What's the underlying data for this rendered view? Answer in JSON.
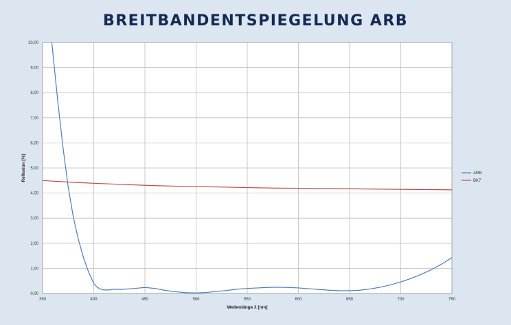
{
  "page": {
    "title": "BREITBANDENTSPIEGELUNG ARB"
  },
  "chart_data": {
    "type": "line",
    "title": "",
    "xlabel": "Wellenlänge λ [nm]",
    "ylabel": "Reflexion [%]",
    "xlim": [
      350,
      750
    ],
    "ylim": [
      0,
      10
    ],
    "x_ticks": [
      350,
      400,
      450,
      500,
      550,
      600,
      650,
      700,
      750
    ],
    "y_ticks": [
      "0,00",
      "1,00",
      "2,00",
      "3,00",
      "4,00",
      "5,00",
      "6,00",
      "7,00",
      "8,00",
      "9,00",
      "10,00"
    ],
    "grid": true,
    "legend_position": "right",
    "series": [
      {
        "name": "ARB",
        "color": "#4a7ebb",
        "x": [
          359,
          362,
          365,
          370,
          375,
          380,
          385,
          390,
          395,
          400,
          403,
          406,
          410,
          415,
          420,
          425,
          430,
          440,
          450,
          460,
          470,
          480,
          490,
          500,
          510,
          520,
          530,
          540,
          550,
          560,
          570,
          580,
          590,
          600,
          610,
          620,
          630,
          640,
          650,
          660,
          670,
          680,
          690,
          700,
          710,
          720,
          730,
          740,
          750
        ],
        "y": [
          10.0,
          8.8,
          7.6,
          5.8,
          4.25,
          3.05,
          2.15,
          1.42,
          0.85,
          0.4,
          0.26,
          0.18,
          0.14,
          0.14,
          0.17,
          0.16,
          0.17,
          0.2,
          0.24,
          0.2,
          0.12,
          0.07,
          0.03,
          0.02,
          0.04,
          0.08,
          0.12,
          0.17,
          0.2,
          0.22,
          0.24,
          0.25,
          0.24,
          0.22,
          0.19,
          0.16,
          0.13,
          0.11,
          0.11,
          0.13,
          0.18,
          0.25,
          0.34,
          0.46,
          0.6,
          0.76,
          0.95,
          1.17,
          1.43
        ]
      },
      {
        "name": "BK7",
        "color": "#be4b48",
        "x": [
          350,
          375,
          400,
          425,
          450,
          475,
          500,
          525,
          550,
          575,
          600,
          625,
          650,
          675,
          700,
          725,
          750
        ],
        "y": [
          4.5,
          4.44,
          4.39,
          4.35,
          4.31,
          4.28,
          4.26,
          4.24,
          4.22,
          4.2,
          4.19,
          4.18,
          4.17,
          4.16,
          4.15,
          4.14,
          4.13
        ]
      }
    ]
  }
}
